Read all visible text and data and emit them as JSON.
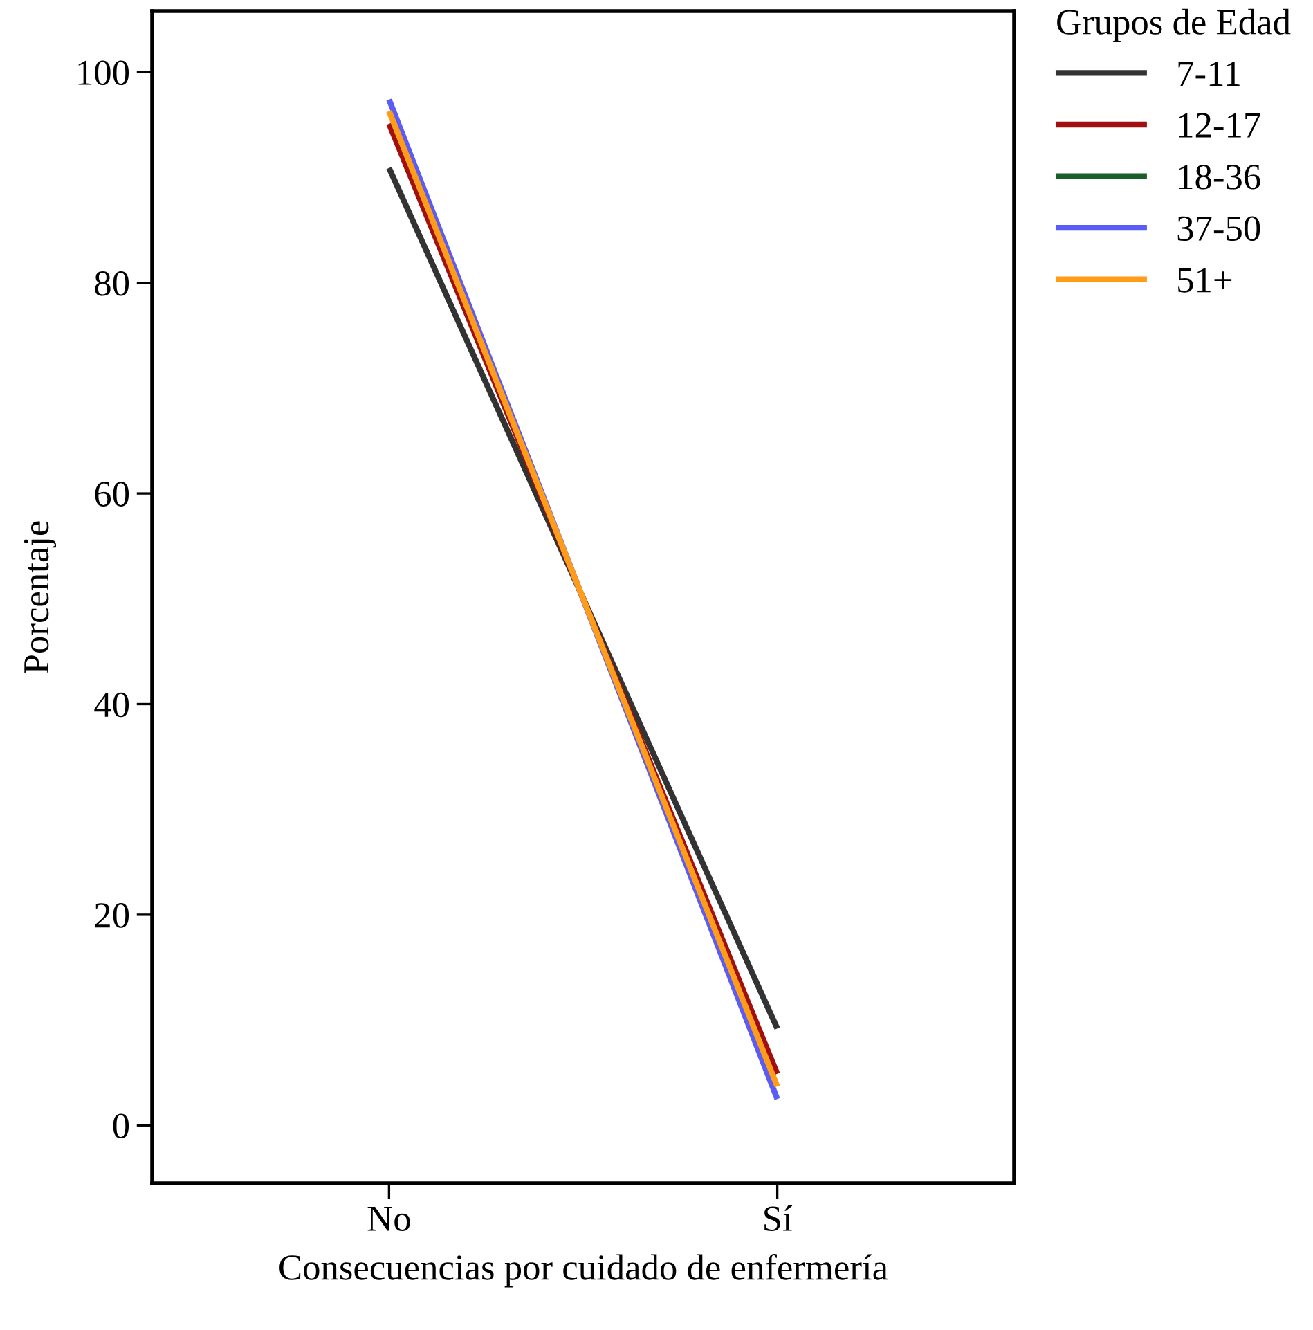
{
  "chart_data": {
    "type": "line",
    "xlabel": "Consecuencias por cuidado de enfermería",
    "ylabel": "Porcentaje",
    "legend_title": "Grupos de Edad",
    "legend": "top right",
    "grid": false,
    "marker": "none",
    "line_style": "solid",
    "categories": [
      "No",
      "Sí"
    ],
    "ylim": [
      -5.5,
      105.8
    ],
    "yticks": [
      0,
      20,
      40,
      60,
      80,
      100
    ],
    "series": [
      {
        "name": "7-11",
        "color": "#333333",
        "values": [
          90.9,
          9.2
        ]
      },
      {
        "name": "12-17",
        "color": "#a01010",
        "values": [
          95.1,
          4.9
        ]
      },
      {
        "name": "18-36",
        "color": "#1a5e2a",
        "values": [
          null,
          null
        ]
      },
      {
        "name": "37-50",
        "color": "#5a5cf5",
        "values": [
          97.4,
          2.5
        ]
      },
      {
        "name": "51+",
        "color": "#ff9c1a",
        "values": [
          96.3,
          3.7
        ]
      }
    ]
  }
}
